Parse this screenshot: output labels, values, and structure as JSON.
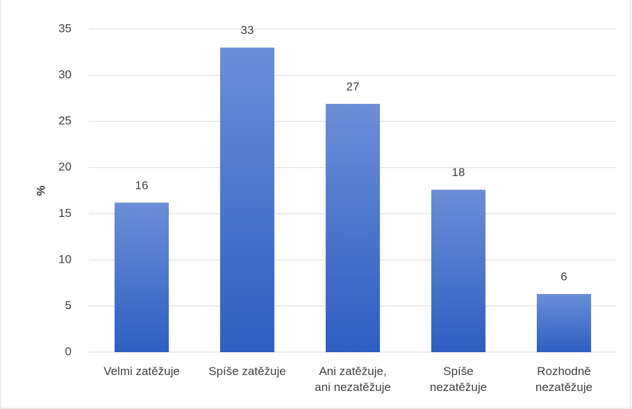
{
  "chart_data": {
    "type": "bar",
    "y_label": "%",
    "categories": [
      "Velmi zatěžuje",
      "Spíše zatěžuje",
      "Ani zatěžuje,\nani nezatěžuje",
      "Spíše\nnezatěžuje",
      "Rozhodně\nnezatěžuje"
    ],
    "values": [
      16.2,
      33,
      26.9,
      17.6,
      6.3
    ],
    "value_labels": [
      "16",
      "33",
      "27",
      "18",
      "6"
    ],
    "color": "#4472c4",
    "ylim": [
      0,
      35
    ],
    "yticks": [
      0,
      5,
      10,
      15,
      20,
      25,
      30,
      35
    ],
    "grid": true
  }
}
